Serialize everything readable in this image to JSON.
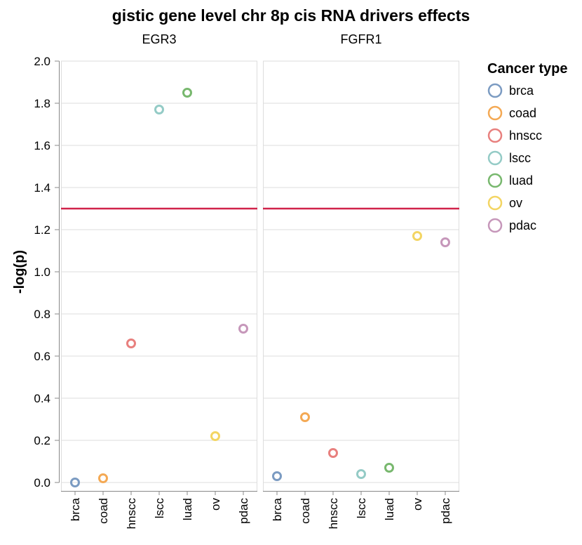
{
  "chart_data": {
    "type": "scatter",
    "title": "gistic gene level chr 8p cis RNA drivers effects",
    "ylabel": "-log(p)",
    "ylim": [
      0,
      2.0
    ],
    "yticks": [
      "0.0",
      "0.2",
      "0.4",
      "0.6",
      "0.8",
      "1.0",
      "1.2",
      "1.4",
      "1.6",
      "1.8",
      "2.0"
    ],
    "grid": true,
    "categories": [
      "brca",
      "coad",
      "hnscc",
      "lscc",
      "luad",
      "ov",
      "pdac"
    ],
    "threshold": 1.3,
    "threshold_color": "#d0234a",
    "legend": {
      "title": "Cancer type",
      "position": "right",
      "items": [
        {
          "label": "brca",
          "color": "#7b9bc2"
        },
        {
          "label": "coad",
          "color": "#f4a954"
        },
        {
          "label": "hnscc",
          "color": "#e8807e"
        },
        {
          "label": "lscc",
          "color": "#94cbc6"
        },
        {
          "label": "luad",
          "color": "#78b86e"
        },
        {
          "label": "ov",
          "color": "#f3d563"
        },
        {
          "label": "pdac",
          "color": "#c697ba"
        }
      ]
    },
    "facets": [
      {
        "name": "EGR3",
        "values": [
          0.0,
          0.02,
          0.66,
          1.77,
          1.85,
          0.22,
          0.73
        ]
      },
      {
        "name": "FGFR1",
        "values": [
          0.03,
          0.31,
          0.14,
          0.04,
          0.07,
          1.17,
          1.14
        ]
      }
    ]
  }
}
